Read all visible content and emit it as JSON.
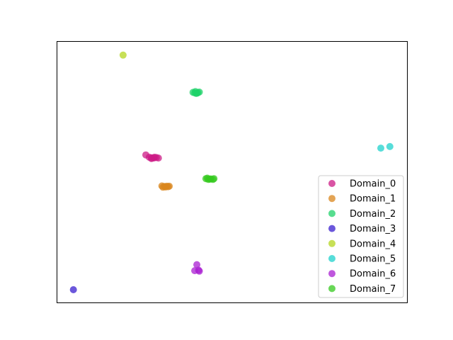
{
  "chart_data": {
    "type": "scatter",
    "title": "",
    "xlabel": "",
    "ylabel": "",
    "xlim": [
      0,
      100
    ],
    "ylim": [
      0,
      100
    ],
    "grid": false,
    "ticks": false,
    "legend_position": "lower right",
    "series": [
      {
        "name": "Domain_0",
        "color": "#cc1b86",
        "points": [
          [
            25.3,
            56.6
          ],
          [
            26.3,
            55.7
          ],
          [
            27.0,
            55.5
          ],
          [
            27.6,
            55.4
          ],
          [
            28.3,
            55.6
          ],
          [
            28.9,
            55.4
          ],
          [
            26.9,
            55.2
          ],
          [
            27.8,
            55.7
          ]
        ]
      },
      {
        "name": "Domain_1",
        "color": "#d9861c",
        "points": [
          [
            29.9,
            44.7
          ],
          [
            30.6,
            44.5
          ],
          [
            31.3,
            44.6
          ],
          [
            32.0,
            44.6
          ],
          [
            30.2,
            44.2
          ],
          [
            31.0,
            44.3
          ],
          [
            31.7,
            44.4
          ]
        ]
      },
      {
        "name": "Domain_2",
        "color": "#1fd16a",
        "points": [
          [
            38.8,
            80.6
          ],
          [
            39.5,
            80.9
          ],
          [
            40.2,
            80.5
          ],
          [
            40.6,
            80.7
          ],
          [
            39.7,
            80.2
          ],
          [
            40.0,
            80.3
          ],
          [
            39.3,
            80.4
          ]
        ]
      },
      {
        "name": "Domain_3",
        "color": "#3a1fcf",
        "points": [
          [
            4.6,
            4.9
          ]
        ]
      },
      {
        "name": "Domain_4",
        "color": "#b4d61f",
        "points": [
          [
            18.8,
            94.9
          ]
        ]
      },
      {
        "name": "Domain_5",
        "color": "#1fd1cc",
        "points": [
          [
            92.5,
            59.2
          ],
          [
            95.1,
            59.8
          ]
        ]
      },
      {
        "name": "Domain_6",
        "color": "#a91fd1",
        "points": [
          [
            39.9,
            14.5
          ],
          [
            39.3,
            12.2
          ],
          [
            40.6,
            12.0
          ],
          [
            40.4,
            12.4
          ]
        ]
      },
      {
        "name": "Domain_7",
        "color": "#36c91f",
        "points": [
          [
            42.5,
            47.5
          ],
          [
            43.2,
            47.2
          ],
          [
            43.9,
            47.4
          ],
          [
            44.5,
            47.2
          ],
          [
            42.9,
            47.7
          ],
          [
            43.6,
            47.3
          ],
          [
            44.8,
            47.5
          ]
        ]
      }
    ]
  }
}
